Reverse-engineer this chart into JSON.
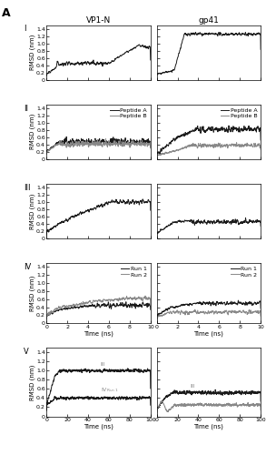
{
  "title_left": "VP1-N",
  "title_right": "gp41",
  "panel_label": "A",
  "row_labels": [
    "I",
    "II",
    "III",
    "IV",
    "V"
  ],
  "ylabel": "RMSD (nm)",
  "xlabel": "Time (ns)",
  "ylim": [
    0,
    1.5
  ],
  "yticks": [
    0,
    0.2,
    0.4,
    0.6,
    0.8,
    1.0,
    1.2,
    1.4
  ],
  "ytick_labels": [
    "0",
    "0.2",
    "0.4",
    "0.6",
    "0.8",
    "1.0",
    "1.2",
    "1.4"
  ],
  "xticks_short": [
    0,
    2,
    4,
    6,
    8,
    10
  ],
  "xticks_long": [
    0,
    20,
    40,
    60,
    80,
    100
  ],
  "xlim_short": [
    0,
    10
  ],
  "xlim_long": [
    0,
    100
  ],
  "colors": {
    "black": "#1a1a1a",
    "gray": "#888888",
    "dark_gray": "#444444"
  },
  "seed": 42
}
